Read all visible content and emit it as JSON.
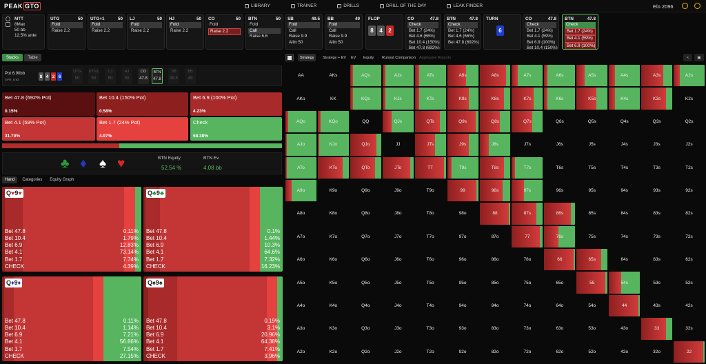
{
  "nav": {
    "logo_a": "PEAK",
    "logo_b": "GTO",
    "items": [
      "LIBRARY",
      "TRAINER",
      "DRILLS",
      "DRILL OF THE DAY",
      "LEAK FINDER"
    ],
    "elo": "Elo 2096"
  },
  "settings": {
    "game": "MTT",
    "table": "8Max",
    "stack": "50 bb",
    "ante": "12.5% ante"
  },
  "positions": [
    {
      "pos": "UTG",
      "stack": "50",
      "actions": [
        "Fold",
        "Raise 2.2"
      ],
      "sel": 0
    },
    {
      "pos": "UTG+1",
      "stack": "50",
      "actions": [
        "Fold",
        "Raise 2.2"
      ],
      "sel": 0
    },
    {
      "pos": "LJ",
      "stack": "50",
      "actions": [
        "Fold",
        "Raise 2.2"
      ],
      "sel": 0
    },
    {
      "pos": "HJ",
      "stack": "50",
      "actions": [
        "Fold",
        "Raise 2.2"
      ],
      "sel": 0
    },
    {
      "pos": "CO",
      "stack": "50",
      "actions": [
        "Fold",
        "Raise 2.2"
      ],
      "sel": 1
    },
    {
      "pos": "BTN",
      "stack": "50",
      "actions": [
        "Fold",
        "Call",
        "Raise 6.6"
      ],
      "sel": 1
    },
    {
      "pos": "SB",
      "stack": "49.5",
      "actions": [
        "Fold",
        "Call",
        "Raise 9.9",
        "Allin 50"
      ],
      "sel": 0
    },
    {
      "pos": "BB",
      "stack": "49",
      "actions": [
        "Fold",
        "Call",
        "Raise 9.9",
        "Allin 50"
      ],
      "sel": 0
    }
  ],
  "flop": {
    "label": "FLOP",
    "cards": [
      "8",
      "4",
      "2"
    ]
  },
  "post": [
    {
      "pos": "CO",
      "stack": "47.8",
      "actions": [
        "Check",
        "Bet 1.7 (24%)",
        "Bet 4.6 (66%)",
        "Bet 10.4 (150%)",
        "Bet 47.8 (692%)"
      ]
    },
    {
      "pos": "BTN",
      "stack": "47.8",
      "actions": [
        "Check",
        "Bet 1.7 (24%)",
        "Bet 4.6 (66%)",
        "Bet 47.8 (692%)"
      ]
    }
  ],
  "turn": {
    "label": "TURN",
    "card": "6"
  },
  "post2": [
    {
      "pos": "CO",
      "stack": "47.8",
      "actions": [
        "Check",
        "Bet 1.7 (24%)",
        "Bet 4.1 (59%)",
        "Bet 6.9 (100%)",
        "Bet 10.4 (150%)"
      ]
    },
    {
      "pos": "BTN",
      "stack": "47.8",
      "actions": [
        "Check",
        "Bet 1.7 (24%)",
        "Bet 4.1 (59%)",
        "Bet 6.9 (100%)",
        "Bet 10.4 (150%)"
      ]
    }
  ],
  "left": {
    "tab_stacks": "Stacks",
    "tab_table": "Table",
    "pot_label": "Pot",
    "pot": "6.90bb",
    "spr": "SPR: 6.93",
    "seats": [
      {
        "n": "UTG",
        "v": "50"
      },
      {
        "n": "UTG1",
        "v": "50"
      },
      {
        "n": "LJ",
        "v": "50"
      },
      {
        "n": "HJ",
        "v": "50"
      },
      {
        "n": "CO",
        "v": "47.8"
      },
      {
        "n": "BTN",
        "v": "47.8"
      },
      {
        "n": "SB",
        "v": "49.5"
      },
      {
        "n": "BB",
        "v": "49"
      }
    ],
    "actions": [
      {
        "label": "Bet 47.8 (692% Pot)",
        "pct": "0.15%"
      },
      {
        "label": "Bet 10.4 (150% Pot)",
        "pct": "0.58%"
      },
      {
        "label": "Bet 6.9 (100% Pot)",
        "pct": "4.23%"
      },
      {
        "label": "Bet 4.1 (59% Pot)",
        "pct": "31.70%"
      },
      {
        "label": "Bet 1.7 (24% Pot)",
        "pct": "4.97%"
      },
      {
        "label": "Check",
        "pct": "58.38%"
      }
    ],
    "equity_label": "BTN Equity",
    "equity": "52.54 %",
    "ev_label": "BTN Ev",
    "ev": "4.08 bb",
    "tabs": [
      "Hand",
      "Categories",
      "Equity Graph"
    ],
    "combos": [
      {
        "rank1": "Q",
        "suit1": "♥",
        "rank2": "9",
        "suit2": "♥",
        "lines": [
          [
            "Bet 47.8",
            "0.11%"
          ],
          [
            "Bet 10.4",
            "1.79%"
          ],
          [
            "Bet 6.9",
            "12.83%"
          ],
          [
            "Bet 4.1",
            "73.14%"
          ],
          [
            "Bet 1.7",
            "7.74%"
          ],
          [
            "CHECK",
            "4.39%"
          ]
        ]
      },
      {
        "rank1": "Q",
        "suit1": "♣",
        "rank2": "9",
        "suit2": "♣",
        "lines": [
          [
            "Bet 47.8",
            "0.1%"
          ],
          [
            "Bet 10.4",
            "1.44%"
          ],
          [
            "Bet 6.9",
            "10.3%"
          ],
          [
            "Bet 4.1",
            "64.6%"
          ],
          [
            "Bet 1.7",
            "7.32%"
          ],
          [
            "CHECK",
            "16.23%"
          ]
        ]
      },
      {
        "rank1": "Q",
        "suit1": "♦",
        "rank2": "9",
        "suit2": "♦",
        "lines": [
          [
            "Bet 47.8",
            "0.11%"
          ],
          [
            "Bet 10.4",
            "1.14%"
          ],
          [
            "Bet 6.9",
            "7.21%"
          ],
          [
            "Bet 4.1",
            "56.86%"
          ],
          [
            "Bet 1.7",
            "7.54%"
          ],
          [
            "CHECK",
            "27.15%"
          ]
        ]
      },
      {
        "rank1": "Q",
        "suit1": "♠",
        "rank2": "9",
        "suit2": "♠",
        "lines": [
          [
            "Bet 47.8",
            "0.19%"
          ],
          [
            "Bet 10.4",
            "3.1%"
          ],
          [
            "Bet 6.9",
            "20.96%"
          ],
          [
            "Bet 4.1",
            "64.38%"
          ],
          [
            "Bet 1.7",
            "7.41%"
          ],
          [
            "CHECK",
            "3.96%"
          ]
        ]
      }
    ]
  },
  "right": {
    "tabs": [
      "Strategy",
      "Strategy + EV",
      "EV",
      "Equity",
      "Runout Comparison",
      "Aggregate Reports"
    ]
  },
  "matrix": {
    "cells": [
      [
        "AA",
        "AKs",
        "AQs",
        "AJs",
        "ATs",
        "A9s",
        "A8s",
        "A7s",
        "A6s",
        "A5s",
        "A4s",
        "A3s",
        "A2s"
      ],
      [
        "AKo",
        "KK",
        "KQs",
        "KJs",
        "KTs",
        "K9s",
        "K8s",
        "K7s",
        "K6s",
        "K5s",
        "K4s",
        "K3s",
        "K2s"
      ],
      [
        "AQo",
        "KQo",
        "QQ",
        "QJs",
        "QTs",
        "Q9s",
        "Q8s",
        "Q7s",
        "Q6s",
        "Q5s",
        "Q4s",
        "Q3s",
        "Q2s"
      ],
      [
        "AJo",
        "KJo",
        "QJo",
        "JJ",
        "JTs",
        "J9s",
        "J8s",
        "J7s",
        "J6s",
        "J5s",
        "J4s",
        "J3s",
        "J2s"
      ],
      [
        "ATo",
        "KTo",
        "QTo",
        "JTo",
        "TT",
        "T9s",
        "T8s",
        "T7s",
        "T6s",
        "T5s",
        "T4s",
        "T3s",
        "T2s"
      ],
      [
        "A9o",
        "K9o",
        "Q9o",
        "J9o",
        "T9o",
        "99",
        "98s",
        "97s",
        "96s",
        "95s",
        "94s",
        "93s",
        "92s"
      ],
      [
        "A8o",
        "K8o",
        "Q8o",
        "J8o",
        "T8o",
        "98o",
        "88",
        "87s",
        "86s",
        "85s",
        "84s",
        "83s",
        "82s"
      ],
      [
        "A7o",
        "K7o",
        "Q7o",
        "J7o",
        "T7o",
        "97o",
        "87o",
        "77",
        "76s",
        "75s",
        "74s",
        "73s",
        "72s"
      ],
      [
        "A6o",
        "K6o",
        "Q6o",
        "J6o",
        "T6o",
        "96o",
        "86o",
        "76o",
        "66",
        "65s",
        "64s",
        "63s",
        "62s"
      ],
      [
        "A5o",
        "K5o",
        "Q5o",
        "J5o",
        "T5o",
        "95o",
        "85o",
        "75o",
        "65o",
        "55",
        "54s",
        "53s",
        "52s"
      ],
      [
        "A4o",
        "K4o",
        "Q4o",
        "J4o",
        "T4o",
        "94o",
        "84o",
        "74o",
        "64o",
        "54o",
        "44",
        "43s",
        "42s"
      ],
      [
        "A3o",
        "K3o",
        "Q3o",
        "J3o",
        "T3o",
        "93o",
        "83o",
        "73o",
        "63o",
        "53o",
        "43o",
        "33",
        "32s"
      ],
      [
        "A2o",
        "K2o",
        "Q2o",
        "J2o",
        "T2o",
        "92o",
        "82o",
        "72o",
        "62o",
        "52o",
        "42o",
        "32o",
        "22"
      ]
    ],
    "check_freq": [
      [
        -1,
        -1,
        0.9,
        0.9,
        0.85,
        0.4,
        0.15,
        0.8,
        0.9,
        0.75,
        0.8,
        0.3,
        0.8
      ],
      [
        -1,
        -1,
        0.9,
        0.9,
        0.85,
        0.3,
        0.2,
        0.3,
        0.9,
        0.35,
        0.8,
        0.2,
        -1
      ],
      [
        0.9,
        0.9,
        -1,
        0.7,
        0.2,
        0.08,
        0.35,
        0.35,
        -1,
        -1,
        -1,
        -1,
        -1
      ],
      [
        0.95,
        0.95,
        0.15,
        -1,
        0.35,
        0.3,
        0.7,
        -1,
        -1,
        -1,
        -1,
        -1,
        -1
      ],
      [
        0.95,
        0.2,
        0.2,
        0.1,
        0.06,
        0.85,
        0.2,
        0.9,
        -1,
        -1,
        -1,
        -1,
        -1
      ],
      [
        0.8,
        -1,
        -1,
        -1,
        -1,
        0.05,
        0.25,
        0.6,
        -1,
        -1,
        -1,
        -1,
        -1
      ],
      [
        -1,
        -1,
        -1,
        -1,
        -1,
        -1,
        0.05,
        0.2,
        0.15,
        -1,
        -1,
        -1,
        -1
      ],
      [
        -1,
        -1,
        -1,
        -1,
        -1,
        -1,
        -1,
        0.1,
        0.55,
        -1,
        -1,
        -1,
        -1
      ],
      [
        -1,
        -1,
        -1,
        -1,
        -1,
        -1,
        -1,
        -1,
        0.06,
        0.2,
        -1,
        -1,
        -1
      ],
      [
        -1,
        -1,
        -1,
        -1,
        -1,
        -1,
        -1,
        -1,
        -1,
        0.08,
        0.6,
        -1,
        -1
      ],
      [
        -1,
        -1,
        -1,
        -1,
        -1,
        -1,
        -1,
        -1,
        -1,
        -1,
        0.05,
        -1,
        -1
      ],
      [
        -1,
        -1,
        -1,
        -1,
        -1,
        -1,
        -1,
        -1,
        -1,
        -1,
        -1,
        0.2,
        -1
      ],
      [
        -1,
        -1,
        -1,
        -1,
        -1,
        -1,
        -1,
        -1,
        -1,
        -1,
        -1,
        -1,
        0.05
      ]
    ]
  },
  "colors": {
    "check": "#57b560",
    "bet_small": "#e5413f",
    "bet_mid": "#c43535",
    "bet_big": "#8e1f1f",
    "bet_huge": "#5a1010",
    "card_red": "#c62828",
    "card_blue": "#1e3ec8",
    "card_grey": "#555555"
  }
}
